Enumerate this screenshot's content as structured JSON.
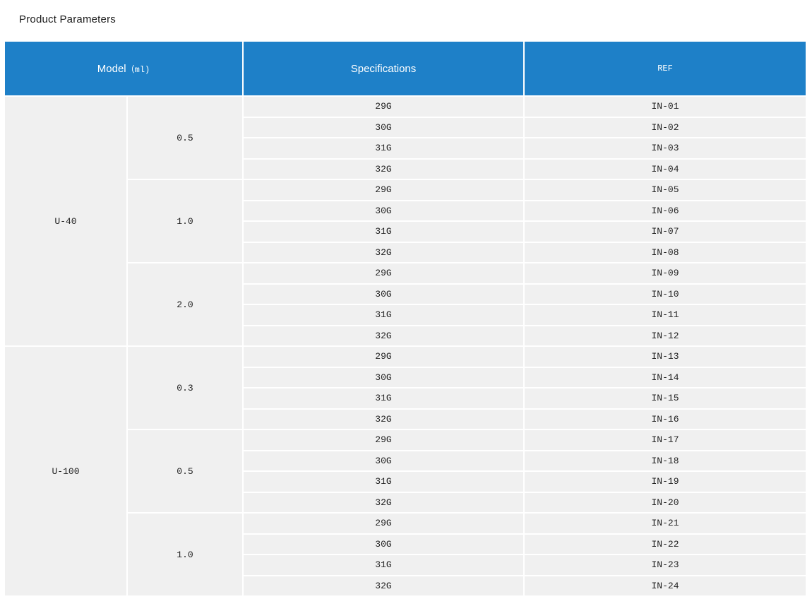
{
  "page": {
    "title": "Product Parameters"
  },
  "colors": {
    "page_bg": "#ffffff",
    "header_bg": "#1e80c8",
    "header_text": "#ffffff",
    "cell_bg": "#f0f0f0",
    "cell_text": "#222222"
  },
  "table": {
    "headers": {
      "model": "Model",
      "model_unit": "（ml)",
      "specifications": "Specifications",
      "ref": "REF"
    },
    "groups": [
      {
        "model": "U-40",
        "volumes": [
          {
            "volume": "0.5",
            "rows": [
              {
                "spec": "29G",
                "ref": "IN-01"
              },
              {
                "spec": "30G",
                "ref": "IN-02"
              },
              {
                "spec": "31G",
                "ref": "IN-03"
              },
              {
                "spec": "32G",
                "ref": "IN-04"
              }
            ]
          },
          {
            "volume": "1.0",
            "rows": [
              {
                "spec": "29G",
                "ref": "IN-05"
              },
              {
                "spec": "30G",
                "ref": "IN-06"
              },
              {
                "spec": "31G",
                "ref": "IN-07"
              },
              {
                "spec": "32G",
                "ref": "IN-08"
              }
            ]
          },
          {
            "volume": "2.0",
            "rows": [
              {
                "spec": "29G",
                "ref": "IN-09"
              },
              {
                "spec": "30G",
                "ref": "IN-10"
              },
              {
                "spec": "31G",
                "ref": "IN-11"
              },
              {
                "spec": "32G",
                "ref": "IN-12"
              }
            ]
          }
        ]
      },
      {
        "model": "U-100",
        "volumes": [
          {
            "volume": "0.3",
            "rows": [
              {
                "spec": "29G",
                "ref": "IN-13"
              },
              {
                "spec": "30G",
                "ref": "IN-14"
              },
              {
                "spec": "31G",
                "ref": "IN-15"
              },
              {
                "spec": "32G",
                "ref": "IN-16"
              }
            ]
          },
          {
            "volume": "0.5",
            "rows": [
              {
                "spec": "29G",
                "ref": "IN-17"
              },
              {
                "spec": "30G",
                "ref": "IN-18"
              },
              {
                "spec": "31G",
                "ref": "IN-19"
              },
              {
                "spec": "32G",
                "ref": "IN-20"
              }
            ]
          },
          {
            "volume": "1.0",
            "rows": [
              {
                "spec": "29G",
                "ref": "IN-21"
              },
              {
                "spec": "30G",
                "ref": "IN-22"
              },
              {
                "spec": "31G",
                "ref": "IN-23"
              },
              {
                "spec": "32G",
                "ref": "IN-24"
              }
            ]
          }
        ]
      }
    ]
  }
}
